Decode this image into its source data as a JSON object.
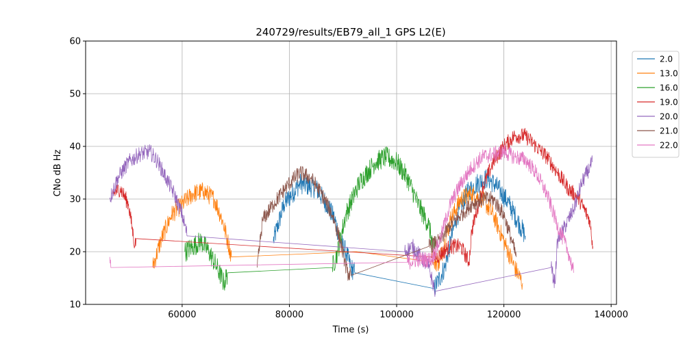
{
  "chart_data": {
    "type": "line",
    "title": "240729/results/EB79_all_1 GPS L2(E)",
    "xlabel": "Time (s)",
    "ylabel": "CNo dB Hz",
    "xlim": [
      42000,
      141000
    ],
    "ylim": [
      10,
      60
    ],
    "xticks": [
      60000,
      80000,
      100000,
      120000,
      140000
    ],
    "yticks": [
      10,
      20,
      30,
      40,
      50,
      60
    ],
    "grid": true,
    "legend_position": "upper-right-outside",
    "series": [
      {
        "name": "2.0",
        "color": "#1f77b4",
        "noise": 2.0,
        "points": [
          [
            77000,
            22
          ],
          [
            79000,
            29
          ],
          [
            82000,
            33
          ],
          [
            85000,
            32
          ],
          [
            87000,
            29
          ],
          [
            88500,
            26
          ],
          [
            89500,
            22
          ],
          [
            90500,
            20
          ],
          [
            91500,
            17
          ],
          [
            92200,
            16
          ],
          [
            107000,
            13
          ],
          [
            109000,
            17
          ],
          [
            111000,
            26
          ],
          [
            113000,
            31
          ],
          [
            115000,
            33
          ],
          [
            117000,
            34
          ],
          [
            119000,
            32
          ],
          [
            121000,
            29
          ],
          [
            123000,
            25
          ],
          [
            124000,
            23
          ]
        ]
      },
      {
        "name": "13.0",
        "color": "#ff7f0e",
        "noise": 1.8,
        "points": [
          [
            54500,
            17
          ],
          [
            56000,
            22
          ],
          [
            58000,
            27
          ],
          [
            60000,
            29
          ],
          [
            62000,
            31
          ],
          [
            64000,
            31.5
          ],
          [
            66000,
            30
          ],
          [
            67500,
            26
          ],
          [
            68500,
            22
          ],
          [
            69200,
            19
          ],
          [
            92500,
            20
          ],
          [
            107000,
            18
          ],
          [
            108000,
            18
          ],
          [
            110000,
            26
          ],
          [
            112000,
            30
          ],
          [
            114000,
            31
          ],
          [
            116000,
            30
          ],
          [
            118000,
            27
          ],
          [
            120000,
            22
          ],
          [
            122000,
            17
          ],
          [
            123500,
            14
          ]
        ]
      },
      {
        "name": "16.0",
        "color": "#2ca02c",
        "noise": 2.0,
        "points": [
          [
            60500,
            20
          ],
          [
            62000,
            21
          ],
          [
            63500,
            22
          ],
          [
            65000,
            20
          ],
          [
            66500,
            17
          ],
          [
            67800,
            14
          ],
          [
            68500,
            16
          ],
          [
            88000,
            17
          ],
          [
            89000,
            20
          ],
          [
            90500,
            27
          ],
          [
            93000,
            33
          ],
          [
            96000,
            37
          ],
          [
            98000,
            38
          ],
          [
            100000,
            37
          ],
          [
            102000,
            34
          ],
          [
            104000,
            29
          ],
          [
            106000,
            25
          ],
          [
            107000,
            20
          ]
        ]
      },
      {
        "name": "19.0",
        "color": "#d62728",
        "noise": 1.5,
        "points": [
          [
            47000,
            31
          ],
          [
            48500,
            32
          ],
          [
            50000,
            29
          ],
          [
            51200,
            21
          ],
          [
            51400,
            22.5
          ],
          [
            106500,
            19
          ],
          [
            107500,
            19
          ],
          [
            110000,
            21
          ],
          [
            112000,
            21
          ],
          [
            113500,
            18
          ],
          [
            114000,
            24
          ],
          [
            116000,
            32
          ],
          [
            118000,
            37
          ],
          [
            120000,
            40
          ],
          [
            122000,
            42
          ],
          [
            124000,
            42
          ],
          [
            126000,
            40
          ],
          [
            128000,
            38
          ],
          [
            130000,
            35
          ],
          [
            132000,
            32
          ],
          [
            134000,
            30
          ],
          [
            136000,
            26
          ],
          [
            136600,
            21
          ]
        ]
      },
      {
        "name": "20.0",
        "color": "#9467bd",
        "noise": 1.5,
        "points": [
          [
            46500,
            30
          ],
          [
            48000,
            34
          ],
          [
            50000,
            37
          ],
          [
            52000,
            38.5
          ],
          [
            54000,
            39
          ],
          [
            55500,
            37
          ],
          [
            57000,
            34
          ],
          [
            58500,
            31
          ],
          [
            60000,
            27
          ],
          [
            61000,
            23
          ],
          [
            101500,
            20
          ],
          [
            103000,
            21
          ],
          [
            104500,
            19
          ],
          [
            106000,
            17
          ],
          [
            107000,
            13
          ],
          [
            107200,
            12.5
          ],
          [
            128800,
            17
          ],
          [
            129500,
            14
          ],
          [
            130000,
            22
          ],
          [
            131000,
            24
          ],
          [
            133000,
            28
          ],
          [
            134500,
            33
          ],
          [
            136000,
            36
          ],
          [
            136500,
            37
          ]
        ]
      },
      {
        "name": "21.0",
        "color": "#8c564b",
        "noise": 1.5,
        "points": [
          [
            74000,
            17
          ],
          [
            75000,
            26
          ],
          [
            77000,
            29
          ],
          [
            80000,
            33
          ],
          [
            82000,
            35
          ],
          [
            84000,
            34
          ],
          [
            86000,
            31
          ],
          [
            88000,
            27
          ],
          [
            89500,
            22
          ],
          [
            90800,
            16
          ],
          [
            91500,
            15.5
          ],
          [
            106000,
            21
          ],
          [
            108000,
            22
          ],
          [
            110000,
            25
          ],
          [
            112000,
            27
          ],
          [
            114000,
            29
          ],
          [
            116000,
            30
          ],
          [
            118000,
            30
          ],
          [
            120000,
            27
          ],
          [
            121500,
            22
          ],
          [
            122300,
            19
          ]
        ]
      },
      {
        "name": "22.0",
        "color": "#e377c2",
        "noise": 1.5,
        "points": [
          [
            46500,
            19
          ],
          [
            46700,
            17
          ],
          [
            102000,
            18
          ],
          [
            104000,
            18.5
          ],
          [
            106500,
            18.5
          ],
          [
            108000,
            22
          ],
          [
            110000,
            29
          ],
          [
            112000,
            33
          ],
          [
            114000,
            36
          ],
          [
            116000,
            38
          ],
          [
            118000,
            38.5
          ],
          [
            120000,
            39
          ],
          [
            122000,
            38
          ],
          [
            124000,
            37.5
          ],
          [
            126000,
            35
          ],
          [
            128000,
            31
          ],
          [
            130000,
            25
          ],
          [
            132000,
            20
          ],
          [
            133000,
            16
          ]
        ]
      }
    ]
  }
}
